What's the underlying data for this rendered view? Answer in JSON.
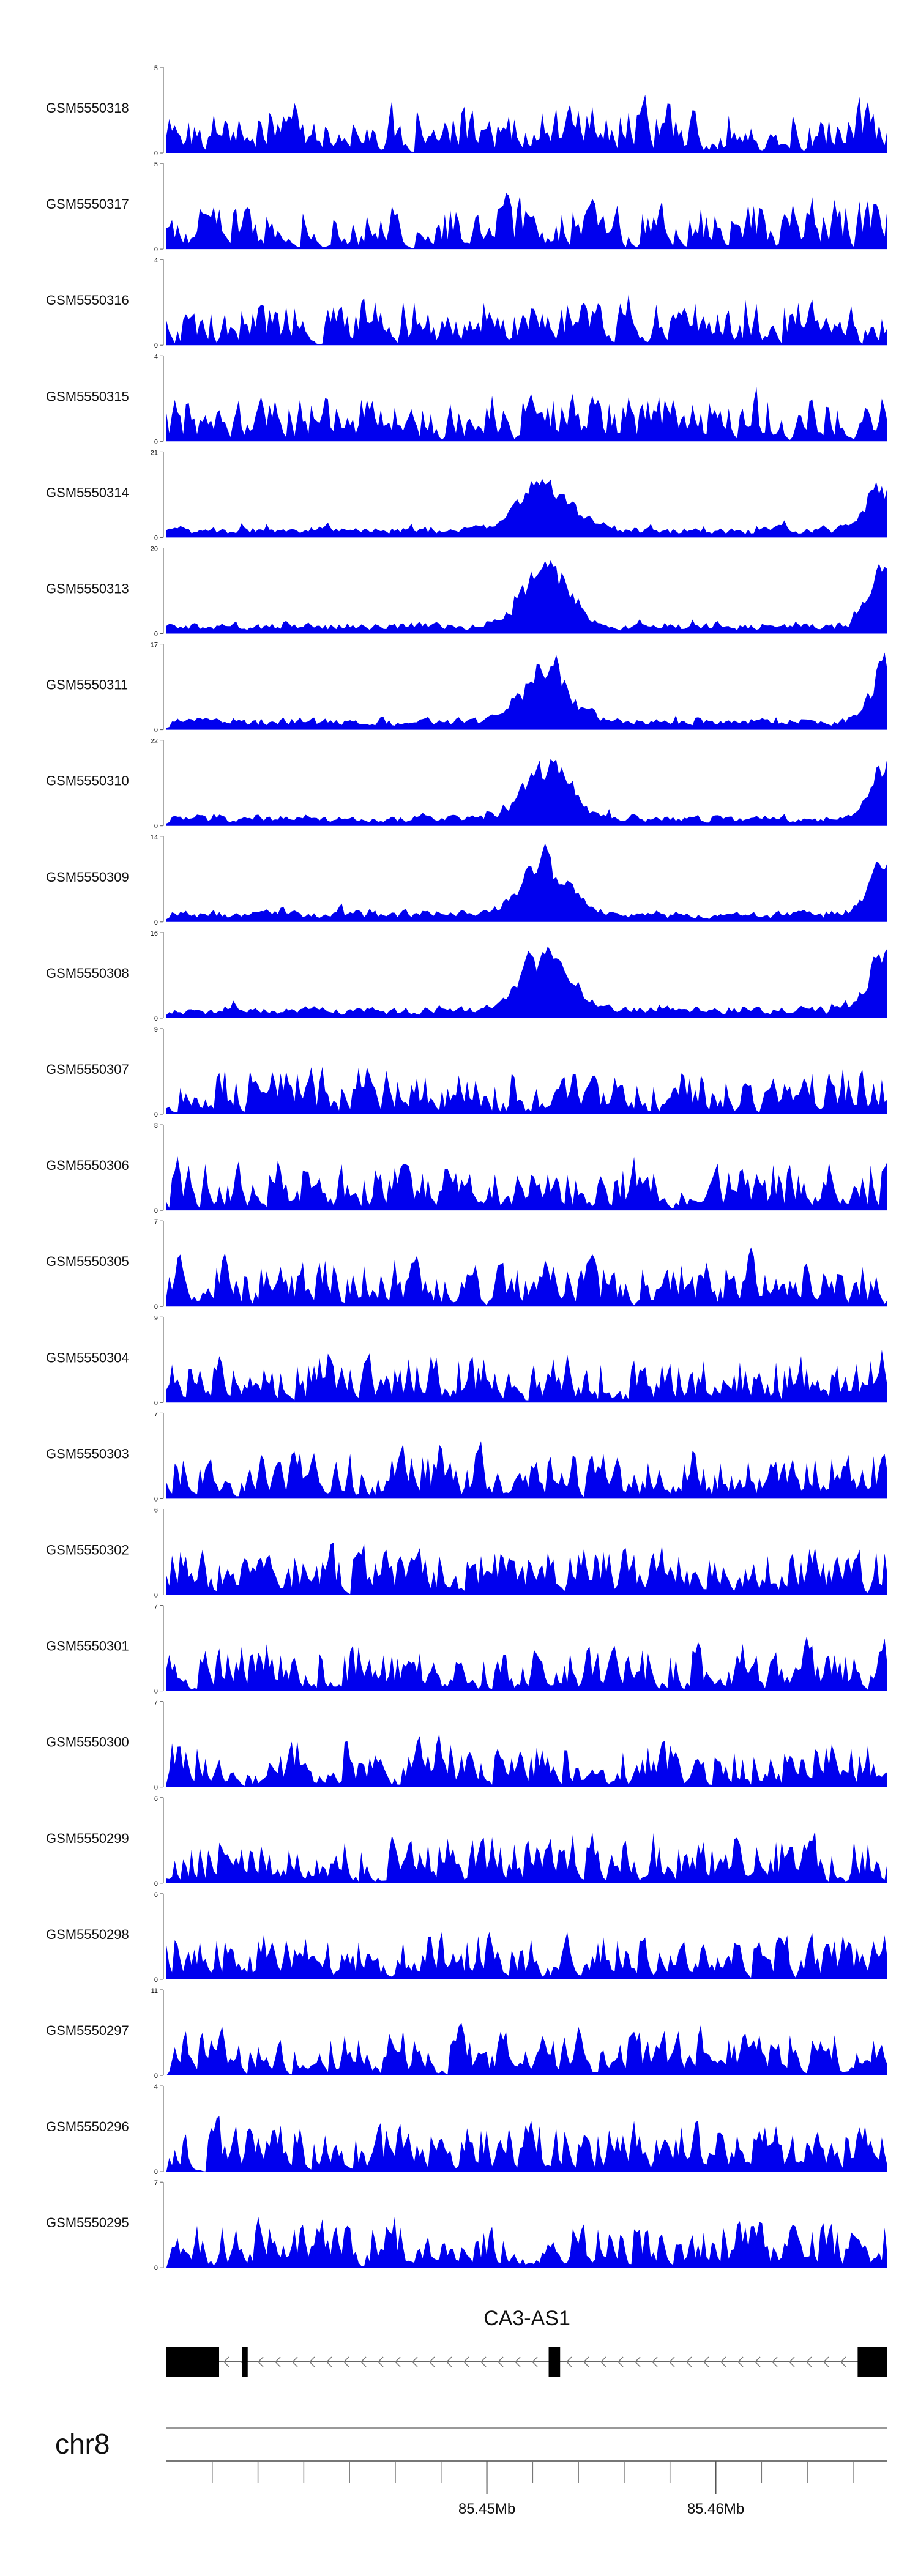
{
  "chart_data": {
    "type": "area",
    "chromosome": "chr8",
    "x_range_mb": [
      85.436,
      85.4675
    ],
    "x_ticks_mb": [
      85.45,
      85.46
    ],
    "x_tick_labels": [
      "85.45Mb",
      "85.46Mb"
    ],
    "fill_color": "#0000ee",
    "gene": {
      "name": "CA3-AS1",
      "strand": "-",
      "start_mb": 85.436,
      "end_mb": 85.4675,
      "exons_mb": [
        [
          85.436,
          85.4383
        ],
        [
          85.4393,
          85.43955
        ],
        [
          85.4527,
          85.4532
        ],
        [
          85.4662,
          85.4675
        ]
      ]
    },
    "tracks": [
      {
        "name": "GSM5550318",
        "ymax": 5
      },
      {
        "name": "GSM5550317",
        "ymax": 5
      },
      {
        "name": "GSM5550316",
        "ymax": 4
      },
      {
        "name": "GSM5550315",
        "ymax": 4
      },
      {
        "name": "GSM5550314",
        "ymax": 21
      },
      {
        "name": "GSM5550313",
        "ymax": 20
      },
      {
        "name": "GSM5550311",
        "ymax": 17
      },
      {
        "name": "GSM5550310",
        "ymax": 22
      },
      {
        "name": "GSM5550309",
        "ymax": 14
      },
      {
        "name": "GSM5550308",
        "ymax": 16
      },
      {
        "name": "GSM5550307",
        "ymax": 9
      },
      {
        "name": "GSM5550306",
        "ymax": 8
      },
      {
        "name": "GSM5550305",
        "ymax": 7
      },
      {
        "name": "GSM5550304",
        "ymax": 9
      },
      {
        "name": "GSM5550303",
        "ymax": 7
      },
      {
        "name": "GSM5550302",
        "ymax": 6
      },
      {
        "name": "GSM5550301",
        "ymax": 7
      },
      {
        "name": "GSM5550300",
        "ymax": 7
      },
      {
        "name": "GSM5550299",
        "ymax": 6
      },
      {
        "name": "GSM5550298",
        "ymax": 6
      },
      {
        "name": "GSM5550297",
        "ymax": 11
      },
      {
        "name": "GSM5550296",
        "ymax": 4
      },
      {
        "name": "GSM5550295",
        "ymax": 7
      }
    ]
  }
}
